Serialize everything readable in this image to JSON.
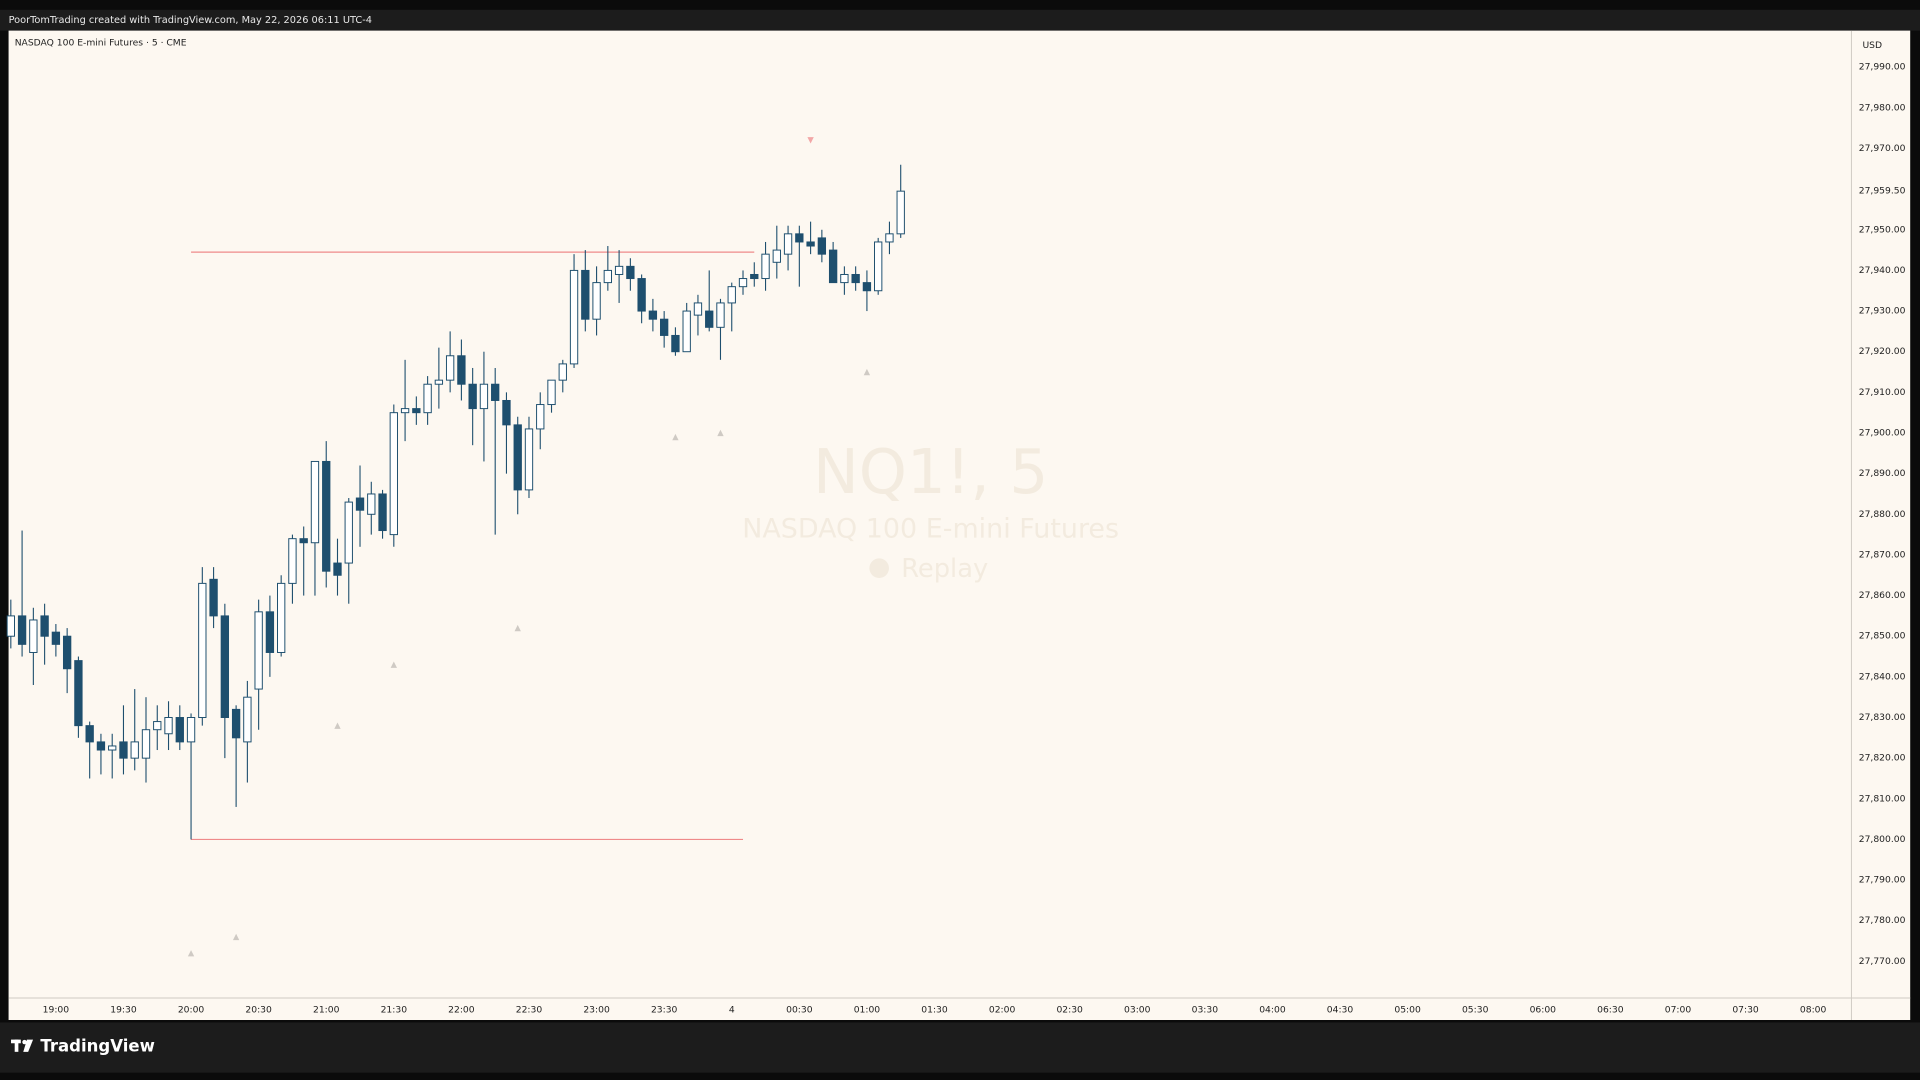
{
  "page": {
    "attribution": "PoorTomTrading created with TradingView.com, May 22, 2026 06:11 UTC-4",
    "brand": "TradingView"
  },
  "chart_data": {
    "type": "candlestick",
    "title": "NASDAQ 100 E-mini Futures · 5 · CME",
    "currency": "USD",
    "watermark": {
      "symbol": "NQ1!, 5",
      "name": "NASDAQ 100 E-mini Futures",
      "mode": "Replay"
    },
    "background": "#fdf8f1",
    "up_color": "#ffffff",
    "down_color": "#1e4f6e",
    "wick_color": "#1e4f6e",
    "grid": false,
    "x": [
      "18:40",
      "18:45",
      "18:50",
      "18:55",
      "19:00",
      "19:05",
      "19:10",
      "19:15",
      "19:20",
      "19:25",
      "19:30",
      "19:35",
      "19:40",
      "19:45",
      "19:50",
      "19:55",
      "20:00",
      "20:05",
      "20:10",
      "20:15",
      "20:20",
      "20:25",
      "20:30",
      "20:35",
      "20:40",
      "20:45",
      "20:50",
      "20:55",
      "21:00",
      "21:05",
      "21:10",
      "21:15",
      "21:20",
      "21:25",
      "21:30",
      "21:35",
      "21:40",
      "21:45",
      "21:50",
      "21:55",
      "22:00",
      "22:05",
      "22:10",
      "22:15",
      "22:20",
      "22:25",
      "22:30",
      "22:35",
      "22:40",
      "22:45",
      "22:50",
      "22:55",
      "23:00",
      "23:05",
      "23:10",
      "23:15",
      "23:20",
      "23:25",
      "23:30",
      "23:35",
      "23:40",
      "23:45",
      "23:50",
      "23:55",
      "00:00",
      "00:05",
      "00:10",
      "00:15",
      "00:20",
      "00:25",
      "00:30",
      "00:35",
      "00:40",
      "00:45",
      "00:50",
      "00:55",
      "01:00",
      "01:05",
      "01:10",
      "01:15"
    ],
    "open": [
      27850,
      27855,
      27846,
      27855,
      27851,
      27850,
      27844,
      27828,
      27824,
      27822,
      27824,
      27820,
      27820,
      27827,
      27826,
      27830,
      27824,
      27830,
      27864,
      27855,
      27832,
      27824,
      27837,
      27856,
      27846,
      27863,
      27874,
      27873,
      27893,
      27868,
      27868,
      27884,
      27880,
      27885,
      27875,
      27905,
      27906,
      27905,
      27912,
      27913,
      27919,
      27912,
      27906,
      27912,
      27908,
      27902,
      27886,
      27901,
      27907,
      27913,
      27917,
      27940,
      27928,
      27937,
      27939,
      27941,
      27938,
      27930,
      27928,
      27924,
      27920,
      27929,
      27930,
      27926,
      27932,
      27936,
      27939,
      27938,
      27942,
      27944,
      27949,
      27947,
      27948,
      27945,
      27937,
      27939,
      27937,
      27935,
      27947,
      27949
    ],
    "high": [
      27859,
      27876,
      27857,
      27858,
      27853,
      27852,
      27845,
      27829,
      27826,
      27826,
      27833,
      27837,
      27835,
      27833,
      27834,
      27833,
      27831,
      27867,
      27867,
      27858,
      27833,
      27839,
      27859,
      27860,
      27865,
      27875,
      27877,
      27893,
      27898,
      27874,
      27884,
      27892,
      27888,
      27886,
      27907,
      27918,
      27909,
      27914,
      27921,
      27925,
      27923,
      27916,
      27920,
      27916,
      27910,
      27904,
      27904,
      27910,
      27913,
      27918,
      27944,
      27945,
      27941,
      27946,
      27945,
      27943,
      27939,
      27933,
      27930,
      27926,
      27932,
      27934,
      27940,
      27933,
      27937,
      27940,
      27942,
      27947,
      27951,
      27951,
      27951,
      27952,
      27950,
      27947,
      27941,
      27941,
      27940,
      27948,
      27952,
      27966
    ],
    "low": [
      27847,
      27845,
      27838,
      27843,
      27845,
      27836,
      27825,
      27815,
      27816,
      27815,
      27816,
      27817,
      27814,
      27822,
      27822,
      27822,
      27800,
      27828,
      27852,
      27820,
      27808,
      27814,
      27827,
      27840,
      27845,
      27858,
      27860,
      27860,
      27862,
      27860,
      27858,
      27872,
      27875,
      27874,
      27872,
      27898,
      27902,
      27902,
      27906,
      27910,
      27908,
      27897,
      27893,
      27875,
      27890,
      27880,
      27884,
      27896,
      27905,
      27910,
      27916,
      27925,
      27924,
      27935,
      27932,
      27935,
      27927,
      27925,
      27921,
      27919,
      27920,
      27924,
      27925,
      27918,
      27925,
      27934,
      27936,
      27935,
      27938,
      27940,
      27936,
      27944,
      27942,
      27937,
      27934,
      27935,
      27930,
      27934,
      27944,
      27948
    ],
    "close": [
      27855,
      27848,
      27854,
      27850,
      27848,
      27842,
      27828,
      27824,
      27822,
      27823,
      27820,
      27824,
      27827,
      27829,
      27830,
      27824,
      27830,
      27863,
      27855,
      27830,
      27825,
      27835,
      27856,
      27846,
      27863,
      27874,
      27873,
      27893,
      27866,
      27865,
      27883,
      27881,
      27885,
      27876,
      27905,
      27906,
      27905,
      27912,
      27913,
      27919,
      27912,
      27906,
      27912,
      27908,
      27902,
      27886,
      27901,
      27907,
      27913,
      27917,
      27940,
      27928,
      27937,
      27940,
      27941,
      27938,
      27930,
      27928,
      27924,
      27920,
      27930,
      27932,
      27926,
      27932,
      27936,
      27938,
      27938,
      27944,
      27945,
      27949,
      27947,
      27946,
      27944,
      27937,
      27939,
      27937,
      27935,
      27947,
      27949,
      27959.5
    ],
    "last_price": {
      "value": 27959.5,
      "label": "27,959.50"
    },
    "levels": [
      {
        "value": 27944.5,
        "start": "20:00",
        "end": "00:10",
        "color": "#ef8a8a"
      },
      {
        "value": 27800,
        "start": "20:00",
        "end": "00:05",
        "color": "#ef8a8a"
      }
    ],
    "markers": [
      {
        "x": "20:00",
        "value": 27772,
        "direction": "up",
        "color": "#cfcac4"
      },
      {
        "x": "20:20",
        "value": 27776,
        "direction": "up",
        "color": "#cfcac4"
      },
      {
        "x": "21:05",
        "value": 27828,
        "direction": "up",
        "color": "#cfcac4"
      },
      {
        "x": "21:30",
        "value": 27843,
        "direction": "up",
        "color": "#cfcac4"
      },
      {
        "x": "22:25",
        "value": 27852,
        "direction": "up",
        "color": "#cfcac4"
      },
      {
        "x": "23:35",
        "value": 27899,
        "direction": "up",
        "color": "#cfcac4"
      },
      {
        "x": "23:55",
        "value": 27900,
        "direction": "up",
        "color": "#cfcac4"
      },
      {
        "x": "01:00",
        "value": 27915,
        "direction": "up",
        "color": "#cfcac4"
      },
      {
        "x": "00:35",
        "value": 27972,
        "direction": "down",
        "color": "#f2a7a7"
      }
    ],
    "xlim": [
      "18:39",
      "08:17"
    ],
    "xticks": [
      "19:00",
      "19:30",
      "20:00",
      "20:30",
      "21:00",
      "21:30",
      "22:00",
      "22:30",
      "23:00",
      "23:30",
      {
        "value": "00:00",
        "label": "4"
      },
      "00:30",
      "01:00",
      "01:30",
      "02:00",
      "02:30",
      "03:00",
      "03:30",
      "04:00",
      "04:30",
      "05:00",
      "05:30",
      "06:00",
      "06:30",
      "07:00",
      "07:30",
      "08:00"
    ],
    "ylim": [
      27761,
      27999
    ],
    "yticks": [
      {
        "value": 27770,
        "label": "27,770.00"
      },
      {
        "value": 27780,
        "label": "27,780.00"
      },
      {
        "value": 27790,
        "label": "27,790.00"
      },
      {
        "value": 27800,
        "label": "27,800.00"
      },
      {
        "value": 27810,
        "label": "27,810.00"
      },
      {
        "value": 27820,
        "label": "27,820.00"
      },
      {
        "value": 27830,
        "label": "27,830.00"
      },
      {
        "value": 27840,
        "label": "27,840.00"
      },
      {
        "value": 27850,
        "label": "27,850.00"
      },
      {
        "value": 27860,
        "label": "27,860.00"
      },
      {
        "value": 27870,
        "label": "27,870.00"
      },
      {
        "value": 27880,
        "label": "27,880.00"
      },
      {
        "value": 27890,
        "label": "27,890.00"
      },
      {
        "value": 27900,
        "label": "27,900.00"
      },
      {
        "value": 27910,
        "label": "27,910.00"
      },
      {
        "value": 27920,
        "label": "27,920.00"
      },
      {
        "value": 27930,
        "label": "27,930.00"
      },
      {
        "value": 27940,
        "label": "27,940.00"
      },
      {
        "value": 27950,
        "label": "27,950.00"
      },
      {
        "value": 27970,
        "label": "27,970.00"
      },
      {
        "value": 27980,
        "label": "27,980.00"
      },
      {
        "value": 27990,
        "label": "27,990.00"
      }
    ]
  }
}
